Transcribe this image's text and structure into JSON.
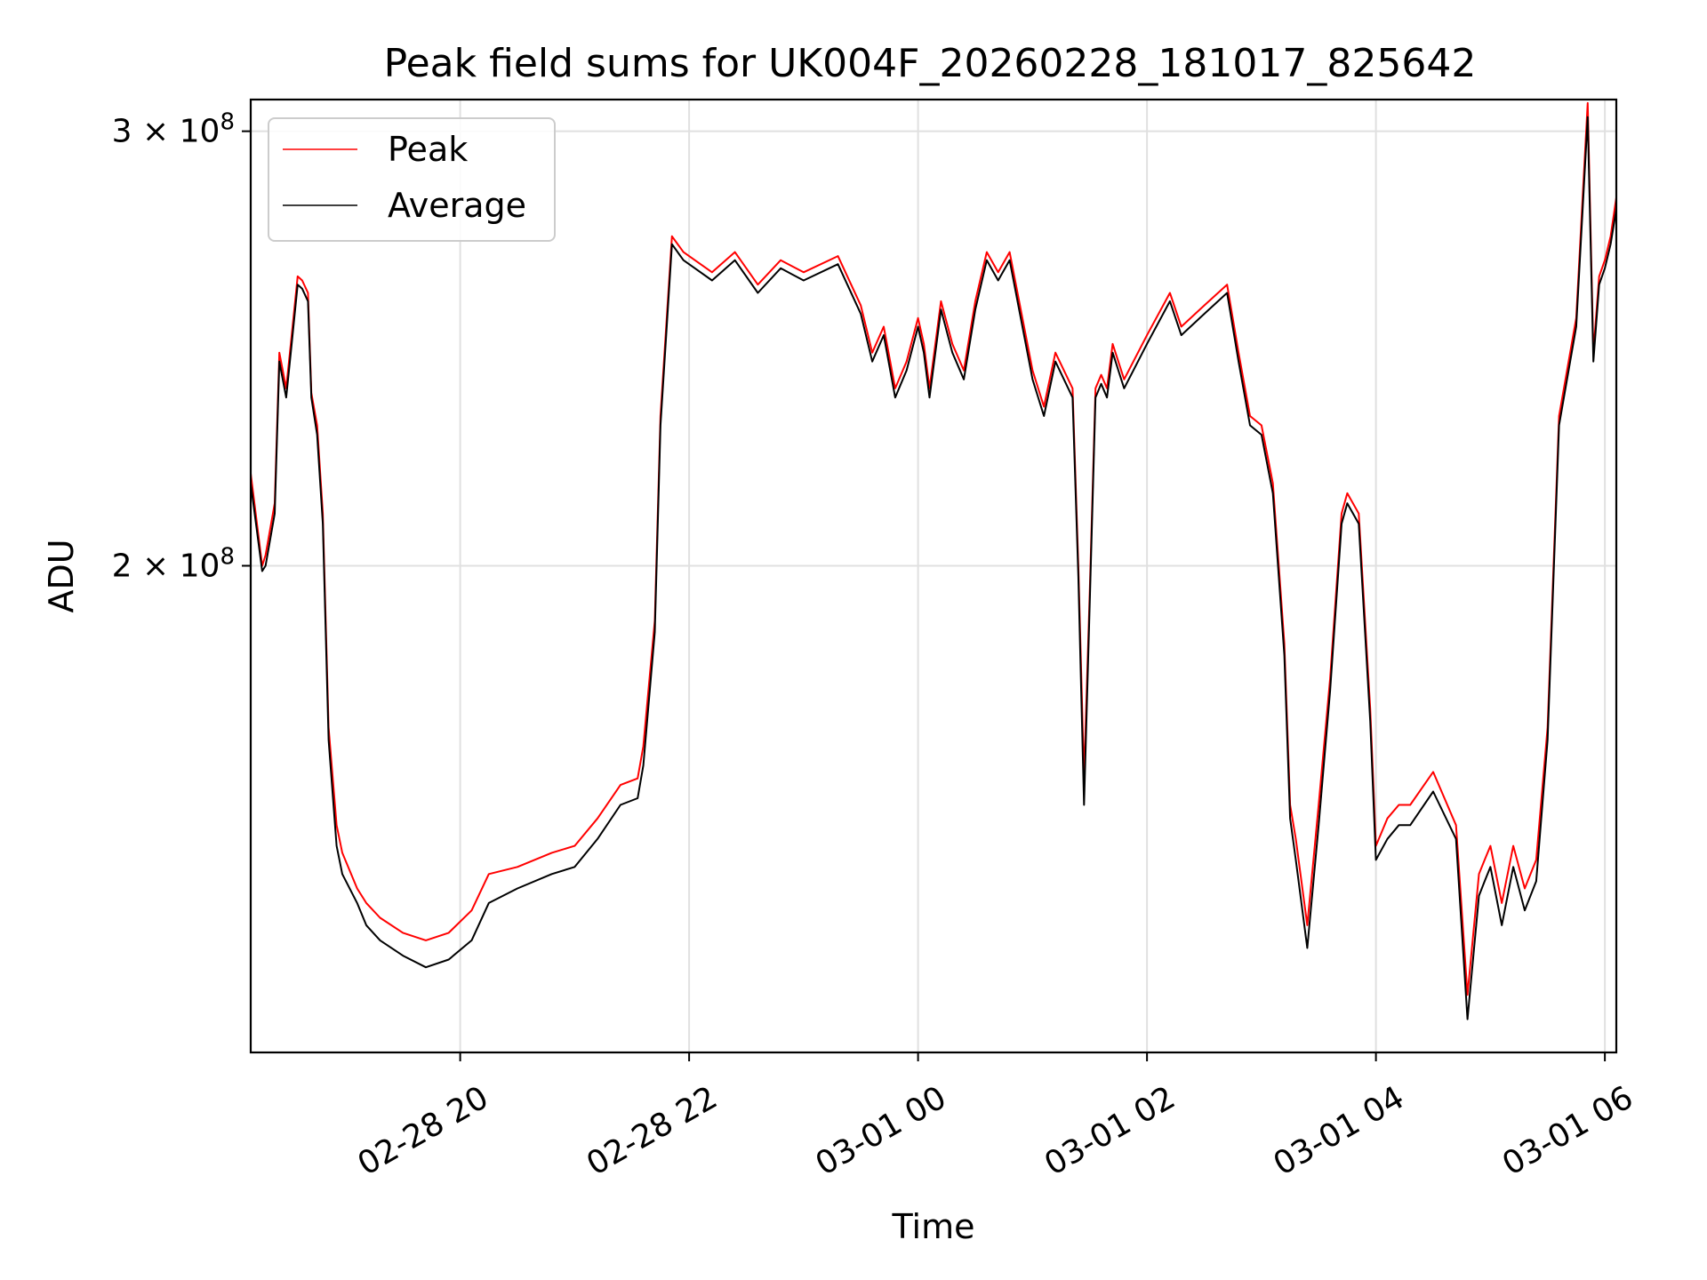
{
  "chart_data": {
    "type": "line",
    "title": "Peak field sums for UK004F_20260228_181017_825642",
    "xlabel": "Time",
    "ylabel": "ADU",
    "x_unit": "hours since 02-28 00:00",
    "xlim": [
      18.17,
      30.1
    ],
    "ylim": [
      127000000.0,
      309000000.0
    ],
    "yscale": "log",
    "grid": true,
    "legend_position": "upper-left",
    "x_ticks": [
      {
        "value": 20,
        "label": "02-28 20"
      },
      {
        "value": 22,
        "label": "02-28 22"
      },
      {
        "value": 24,
        "label": "03-01 00"
      },
      {
        "value": 26,
        "label": "03-01 02"
      },
      {
        "value": 28,
        "label": "03-01 04"
      },
      {
        "value": 30,
        "label": "03-01 06"
      }
    ],
    "y_ticks": [
      {
        "value": 200000000,
        "mantissa": "2",
        "base": "10",
        "exponent": "8"
      },
      {
        "value": 300000000,
        "mantissa": "3",
        "base": "10",
        "exponent": "8"
      }
    ],
    "series": [
      {
        "name": "Peak",
        "color": "#ff0000",
        "x": [
          18.17,
          18.27,
          18.3,
          18.38,
          18.42,
          18.48,
          18.52,
          18.58,
          18.62,
          18.67,
          18.7,
          18.75,
          18.8,
          18.85,
          18.92,
          18.97,
          19.1,
          19.18,
          19.3,
          19.5,
          19.7,
          19.9,
          20.1,
          20.25,
          20.5,
          20.8,
          21.0,
          21.2,
          21.4,
          21.55,
          21.6,
          21.7,
          21.75,
          21.85,
          21.95,
          22.05,
          22.2,
          22.4,
          22.6,
          22.8,
          23.0,
          23.3,
          23.5,
          23.6,
          23.7,
          23.8,
          23.9,
          24.0,
          24.05,
          24.1,
          24.2,
          24.3,
          24.4,
          24.5,
          24.6,
          24.7,
          24.8,
          25.0,
          25.1,
          25.2,
          25.35,
          25.4,
          25.45,
          25.5,
          25.55,
          25.6,
          25.65,
          25.7,
          25.8,
          26.0,
          26.2,
          26.3,
          26.5,
          26.7,
          26.8,
          26.9,
          27.0,
          27.1,
          27.2,
          27.25,
          27.3,
          27.4,
          27.5,
          27.6,
          27.7,
          27.75,
          27.85,
          27.95,
          28.0,
          28.1,
          28.2,
          28.3,
          28.5,
          28.7,
          28.8,
          28.9,
          28.95,
          29.0,
          29.1,
          29.2,
          29.3,
          29.4,
          29.5,
          29.6,
          29.75,
          29.85,
          29.9,
          29.95,
          30.0,
          30.05,
          30.1
        ],
        "values": [
          218000000,
          200000000,
          202000000,
          212000000,
          244000000,
          236000000,
          246000000,
          262000000,
          261000000,
          258000000,
          235000000,
          228000000,
          210000000,
          172000000,
          157000000,
          153000000,
          148000000,
          146000000,
          144000000,
          142000000,
          141000000,
          142000000,
          145000000,
          150000000,
          151000000,
          153000000,
          154000000,
          158000000,
          163000000,
          164000000,
          169000000,
          190000000,
          230000000,
          272000000,
          268000000,
          266000000,
          263000000,
          268000000,
          260000000,
          266000000,
          263000000,
          267000000,
          255000000,
          244000000,
          250000000,
          236000000,
          242000000,
          252000000,
          246000000,
          236000000,
          256000000,
          246000000,
          240000000,
          256000000,
          268000000,
          263000000,
          268000000,
          240000000,
          232000000,
          244000000,
          236000000,
          200000000,
          164000000,
          195000000,
          236000000,
          239000000,
          236000000,
          246000000,
          238000000,
          248000000,
          258000000,
          250000000,
          255000000,
          260000000,
          244000000,
          230000000,
          228000000,
          216000000,
          186000000,
          160000000,
          155000000,
          143000000,
          160000000,
          180000000,
          210000000,
          214000000,
          210000000,
          175000000,
          154000000,
          158000000,
          160000000,
          160000000,
          165000000,
          157000000,
          134000000,
          150000000,
          152000000,
          154000000,
          146000000,
          154000000,
          148000000,
          152000000,
          172000000,
          230000000,
          252000000,
          308000000,
          244000000,
          262000000,
          266000000,
          272000000,
          282000000
        ]
      },
      {
        "name": "Average",
        "color": "#000000",
        "x": [
          18.17,
          18.27,
          18.3,
          18.38,
          18.42,
          18.48,
          18.52,
          18.58,
          18.62,
          18.67,
          18.7,
          18.75,
          18.8,
          18.85,
          18.92,
          18.97,
          19.1,
          19.18,
          19.3,
          19.5,
          19.7,
          19.9,
          20.1,
          20.25,
          20.5,
          20.8,
          21.0,
          21.2,
          21.4,
          21.55,
          21.6,
          21.7,
          21.75,
          21.85,
          21.95,
          22.05,
          22.2,
          22.4,
          22.6,
          22.8,
          23.0,
          23.3,
          23.5,
          23.6,
          23.7,
          23.8,
          23.9,
          24.0,
          24.05,
          24.1,
          24.2,
          24.3,
          24.4,
          24.5,
          24.6,
          24.7,
          24.8,
          25.0,
          25.1,
          25.2,
          25.35,
          25.4,
          25.45,
          25.5,
          25.55,
          25.6,
          25.65,
          25.7,
          25.8,
          26.0,
          26.2,
          26.3,
          26.5,
          26.7,
          26.8,
          26.9,
          27.0,
          27.1,
          27.2,
          27.25,
          27.3,
          27.4,
          27.5,
          27.6,
          27.7,
          27.75,
          27.85,
          27.95,
          28.0,
          28.1,
          28.2,
          28.3,
          28.5,
          28.7,
          28.8,
          28.9,
          28.95,
          29.0,
          29.1,
          29.2,
          29.3,
          29.4,
          29.5,
          29.6,
          29.75,
          29.85,
          29.9,
          29.95,
          30.0,
          30.05,
          30.1
        ],
        "values": [
          216000000,
          199000000,
          200000000,
          210000000,
          242000000,
          234000000,
          244000000,
          260000000,
          259000000,
          256000000,
          234000000,
          226000000,
          208000000,
          170000000,
          154000000,
          150000000,
          146000000,
          143000000,
          141000000,
          139000000,
          137500000,
          138500000,
          141000000,
          146000000,
          148000000,
          150000000,
          151000000,
          155000000,
          160000000,
          161000000,
          166000000,
          188000000,
          228000000,
          270000000,
          266000000,
          264000000,
          261000000,
          266000000,
          258000000,
          264000000,
          261000000,
          265000000,
          253000000,
          242000000,
          248000000,
          234000000,
          240000000,
          250000000,
          244000000,
          234000000,
          254000000,
          244000000,
          238000000,
          254000000,
          266000000,
          261000000,
          266000000,
          238000000,
          230000000,
          242000000,
          234000000,
          198000000,
          160000000,
          193000000,
          234000000,
          237000000,
          234000000,
          244000000,
          236000000,
          246000000,
          256000000,
          248000000,
          253000000,
          258000000,
          242000000,
          228000000,
          226000000,
          214000000,
          184000000,
          158000000,
          152000000,
          140000000,
          157000000,
          178000000,
          208000000,
          212000000,
          208000000,
          173000000,
          152000000,
          155000000,
          157000000,
          157000000,
          162000000,
          155000000,
          131000000,
          147000000,
          149000000,
          151000000,
          143000000,
          151000000,
          145000000,
          149000000,
          170000000,
          228000000,
          250000000,
          304000000,
          242000000,
          260000000,
          264000000,
          270000000,
          279000000
        ]
      }
    ]
  }
}
